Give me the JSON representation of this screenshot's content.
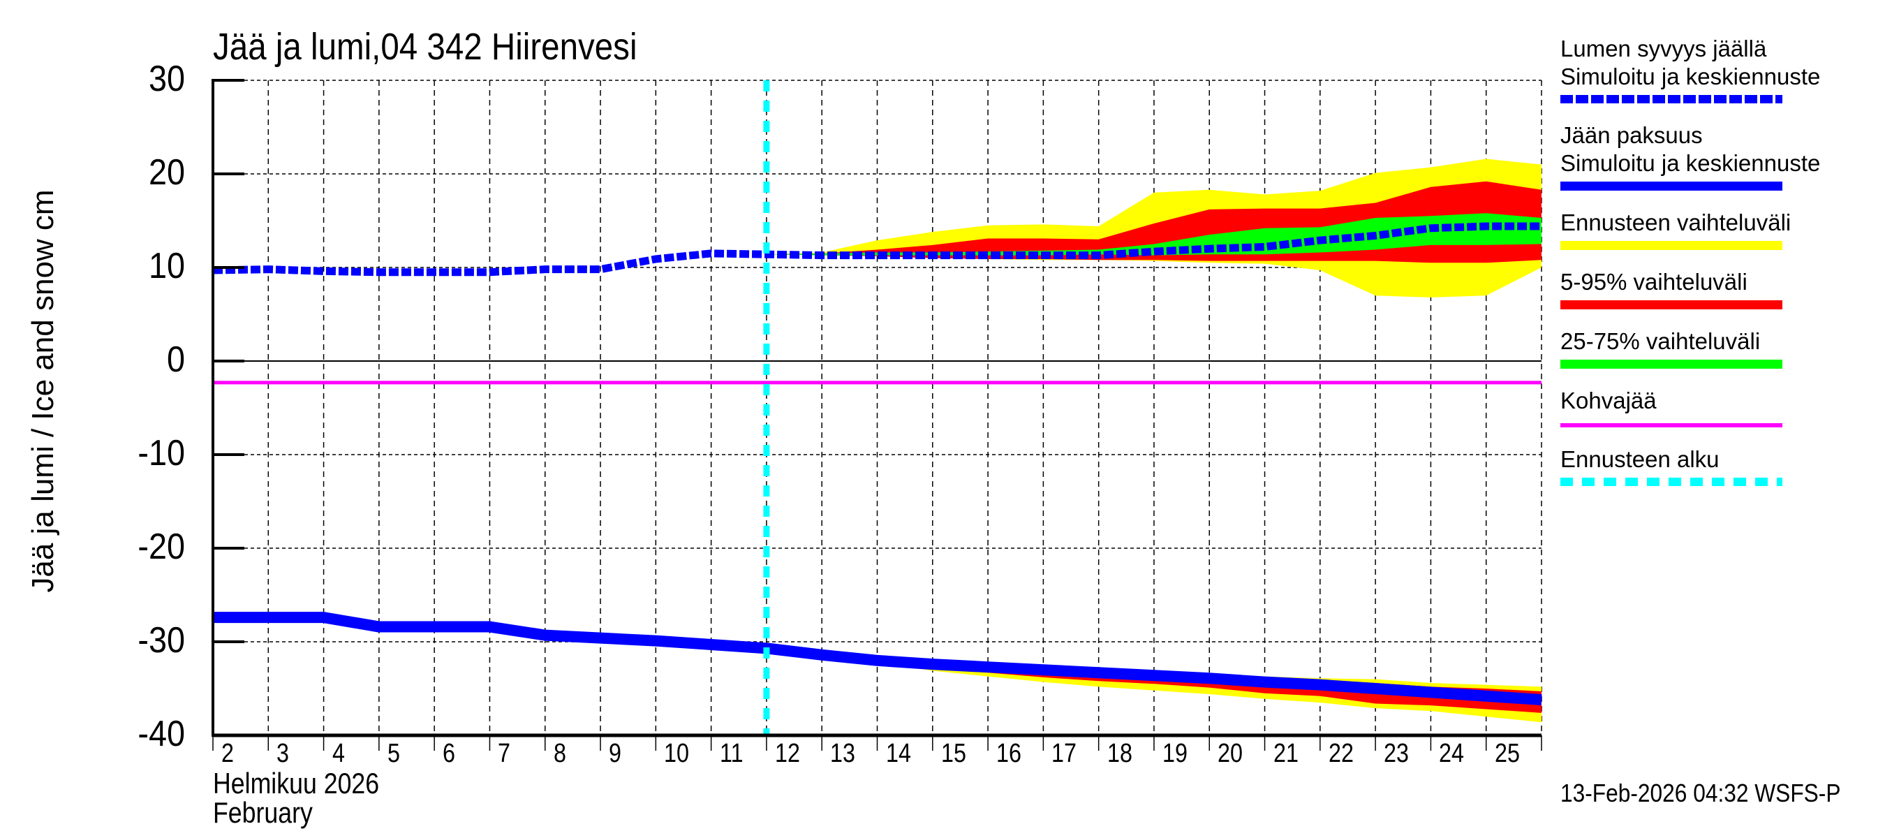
{
  "title": "Jää ja lumi,04 342 Hiirenvesi",
  "y_axis_label": "Jää ja lumi / Ice and snow    cm",
  "y_ticks": [
    "30",
    "20",
    "10",
    "0",
    "-10",
    "-20",
    "-30",
    "-40"
  ],
  "x_ticks": [
    "2",
    "3",
    "4",
    "5",
    "6",
    "7",
    "8",
    "9",
    "10",
    "11",
    "12",
    "13",
    "14",
    "15",
    "16",
    "17",
    "18",
    "19",
    "20",
    "21",
    "22",
    "23",
    "24",
    "25"
  ],
  "x_month_fi": "Helmikuu  2026",
  "x_month_en": "February",
  "footer": "13-Feb-2026 04:32 WSFS-P",
  "legend": [
    {
      "label": "Lumen syvyys jäällä",
      "sublabel": "Simuloitu ja keskiennuste",
      "color": "#0000ff",
      "style": "dashed"
    },
    {
      "label": "Jään paksuus",
      "sublabel": "Simuloitu ja keskiennuste",
      "color": "#0000ff",
      "style": "solid"
    },
    {
      "label": "Ennusteen vaihteluväli",
      "color": "#ffff00",
      "style": "solid"
    },
    {
      "label": "5-95% vaihteluväli",
      "color": "#ff0000",
      "style": "solid"
    },
    {
      "label": "25-75% vaihteluväli",
      "color": "#00ff00",
      "style": "solid"
    },
    {
      "label": "Kohvajää",
      "color": "#ff00ff",
      "style": "thin"
    },
    {
      "label": "Ennusteen alku",
      "color": "#00ffff",
      "style": "dotted"
    }
  ],
  "chart_data": {
    "type": "area",
    "title": "Jää ja lumi,04 342 Hiirenvesi",
    "xlabel": "Helmikuu 2026 / February",
    "ylabel": "Jää ja lumi / Ice and snow cm",
    "xlim": [
      2,
      26
    ],
    "ylim": [
      -40,
      30
    ],
    "grid": true,
    "legend_position": "right",
    "forecast_start_day": 12,
    "kohvajaa_level": -2.3,
    "zero_line": 0,
    "snow_depth": {
      "name": "Lumen syvyys jäällä (Simuloitu ja keskiennuste)",
      "x": [
        2,
        3,
        4,
        5,
        6,
        7,
        8,
        9,
        10,
        11,
        12,
        13,
        14,
        15,
        16,
        17,
        18,
        19,
        20,
        21,
        22,
        23,
        24,
        25,
        26
      ],
      "values": [
        9.7,
        9.8,
        9.6,
        9.5,
        9.5,
        9.5,
        9.8,
        9.8,
        10.9,
        11.5,
        11.4,
        11.3,
        11.3,
        11.3,
        11.3,
        11.3,
        11.3,
        11.7,
        12.0,
        12.2,
        12.9,
        13.4,
        14.2,
        14.4,
        14.4
      ]
    },
    "snow_forecast_bands": {
      "x": [
        12,
        13,
        14,
        15,
        16,
        17,
        18,
        19,
        20,
        21,
        22,
        23,
        24,
        25,
        26
      ],
      "p_min": [
        11.4,
        11.3,
        11.2,
        11.0,
        10.9,
        10.8,
        10.8,
        10.7,
        10.5,
        10.4,
        9.7,
        7.0,
        6.8,
        7.0,
        10.0
      ],
      "p5": [
        11.4,
        11.3,
        11.2,
        11.0,
        10.9,
        10.9,
        10.8,
        10.8,
        10.7,
        10.7,
        10.7,
        10.7,
        10.5,
        10.5,
        10.8
      ],
      "p25": [
        11.4,
        11.3,
        11.3,
        11.3,
        11.3,
        11.3,
        11.4,
        11.3,
        11.4,
        11.4,
        11.6,
        11.9,
        12.4,
        12.4,
        12.5
      ],
      "p75": [
        11.4,
        11.5,
        11.6,
        11.6,
        11.7,
        11.8,
        11.9,
        12.5,
        13.5,
        14.2,
        14.3,
        15.3,
        15.5,
        15.8,
        15.3
      ],
      "p95": [
        11.4,
        11.5,
        11.9,
        12.4,
        13.1,
        13.1,
        13.0,
        14.7,
        16.2,
        16.3,
        16.3,
        16.9,
        18.6,
        19.2,
        18.3
      ],
      "p_max": [
        11.4,
        11.6,
        12.9,
        13.8,
        14.5,
        14.6,
        14.4,
        18.0,
        18.3,
        17.8,
        18.2,
        20.1,
        20.7,
        21.6,
        21.0
      ]
    },
    "ice_thickness": {
      "name": "Jään paksuus (Simuloitu ja keskiennuste)",
      "x": [
        2,
        3,
        4,
        5,
        6,
        7,
        8,
        9,
        10,
        11,
        12,
        13,
        14,
        15,
        16,
        17,
        18,
        19,
        20,
        21,
        22,
        23,
        24,
        25,
        26
      ],
      "values": [
        -27.4,
        -27.4,
        -27.4,
        -28.4,
        -28.4,
        -28.4,
        -29.3,
        -29.6,
        -29.9,
        -30.3,
        -30.7,
        -31.4,
        -32.0,
        -32.4,
        -32.7,
        -33.0,
        -33.3,
        -33.6,
        -33.9,
        -34.3,
        -34.6,
        -35.0,
        -35.4,
        -35.8,
        -36.2
      ]
    },
    "ice_forecast_bands": {
      "x": [
        12,
        13,
        14,
        15,
        16,
        17,
        18,
        19,
        20,
        21,
        22,
        23,
        24,
        25,
        26
      ],
      "p_min": [
        -30.7,
        -31.4,
        -32.2,
        -33.1,
        -33.7,
        -34.3,
        -34.8,
        -35.2,
        -35.6,
        -36.1,
        -36.5,
        -37.1,
        -37.4,
        -38.0,
        -38.6
      ],
      "p5": [
        -30.7,
        -31.4,
        -32.1,
        -32.9,
        -33.3,
        -33.8,
        -34.2,
        -34.5,
        -34.9,
        -35.5,
        -35.8,
        -36.6,
        -36.8,
        -37.2,
        -37.6
      ],
      "p95": [
        -30.7,
        -31.3,
        -31.8,
        -32.1,
        -32.4,
        -32.7,
        -33.0,
        -33.3,
        -33.6,
        -33.9,
        -34.1,
        -34.4,
        -34.8,
        -35.0,
        -35.3
      ],
      "p_max": [
        -30.7,
        -31.2,
        -31.6,
        -31.9,
        -32.2,
        -32.5,
        -32.8,
        -33.1,
        -33.4,
        -33.7,
        -33.9,
        -34.0,
        -34.4,
        -34.6,
        -34.8
      ]
    }
  }
}
